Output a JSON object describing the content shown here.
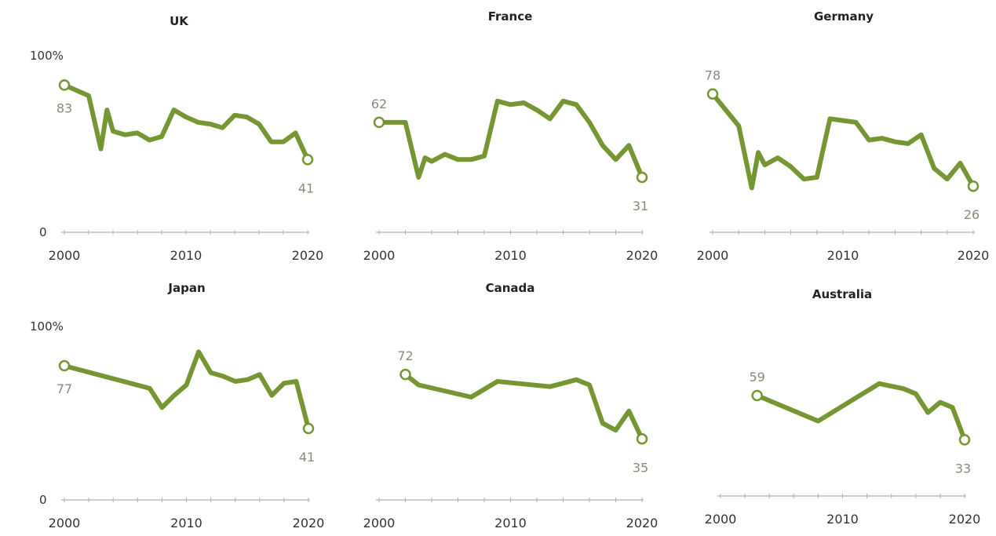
{
  "colors": {
    "line": "#759632",
    "axis": "#b0b0b0",
    "value_label": "#8a8a7a"
  },
  "chart_data": [
    {
      "type": "line",
      "title": "UK",
      "xlim": [
        2000,
        2020
      ],
      "ylim": [
        0,
        100
      ],
      "y_tick_labels": [
        "100%",
        "0"
      ],
      "x_tick_labels": [
        "2000",
        "2010",
        "2020"
      ],
      "x": [
        2000,
        2002,
        2003,
        2003.5,
        2004,
        2005,
        2006,
        2007,
        2008,
        2009,
        2010,
        2011,
        2012,
        2013,
        2014,
        2015,
        2016,
        2017,
        2018,
        2019,
        2020
      ],
      "values": [
        83,
        77,
        47,
        69,
        57,
        55,
        56,
        52,
        54,
        69,
        65,
        62,
        61,
        59,
        66,
        65,
        61,
        51,
        51,
        56,
        41
      ],
      "start_label": "83",
      "end_label": "41"
    },
    {
      "type": "line",
      "title": "France",
      "xlim": [
        2000,
        2020
      ],
      "ylim": [
        0,
        100
      ],
      "y_tick_labels": [],
      "x_tick_labels": [
        "2000",
        "2010",
        "2020"
      ],
      "x": [
        2000,
        2002,
        2003,
        2003.5,
        2004,
        2005,
        2006,
        2007,
        2008,
        2009,
        2010,
        2011,
        2012,
        2013,
        2014,
        2015,
        2016,
        2017,
        2018,
        2019,
        2020
      ],
      "values": [
        62,
        62,
        31,
        42,
        40,
        44,
        41,
        41,
        43,
        74,
        72,
        73,
        69,
        64,
        74,
        72,
        62,
        49,
        41,
        49,
        31
      ],
      "start_label": "62",
      "end_label": "31"
    },
    {
      "type": "line",
      "title": "Germany",
      "xlim": [
        2000,
        2020
      ],
      "ylim": [
        0,
        100
      ],
      "y_tick_labels": [],
      "x_tick_labels": [
        "2000",
        "2010",
        "2020"
      ],
      "x": [
        2000,
        2002,
        2003,
        2003.5,
        2004,
        2005,
        2006,
        2007,
        2008,
        2009,
        2010,
        2011,
        2012,
        2013,
        2014,
        2015,
        2016,
        2017,
        2018,
        2019,
        2020
      ],
      "values": [
        78,
        60,
        25,
        45,
        38,
        42,
        37,
        30,
        31,
        64,
        63,
        62,
        52,
        53,
        51,
        50,
        55,
        36,
        30,
        39,
        26
      ],
      "start_label": "78",
      "end_label": "26"
    },
    {
      "type": "line",
      "title": "Japan",
      "xlim": [
        2000,
        2020
      ],
      "ylim": [
        0,
        100
      ],
      "y_tick_labels": [
        "100%",
        "0"
      ],
      "x_tick_labels": [
        "2000",
        "2010",
        "2020"
      ],
      "x": [
        2000,
        2007,
        2008,
        2009,
        2010,
        2011,
        2012,
        2013,
        2014,
        2015,
        2016,
        2017,
        2018,
        2019,
        2020
      ],
      "values": [
        77,
        64,
        53,
        60,
        66,
        85,
        73,
        71,
        68,
        69,
        72,
        60,
        67,
        68,
        41
      ],
      "start_label": "77",
      "end_label": "41"
    },
    {
      "type": "line",
      "title": "Canada",
      "xlim": [
        2000,
        2020
      ],
      "ylim": [
        0,
        100
      ],
      "y_tick_labels": [],
      "x_tick_labels": [
        "2000",
        "2010",
        "2020"
      ],
      "x": [
        2002,
        2003,
        2007,
        2009,
        2013,
        2014,
        2015,
        2016,
        2017,
        2018,
        2019,
        2020
      ],
      "values": [
        72,
        66,
        59,
        68,
        65,
        67,
        69,
        66,
        44,
        40,
        51,
        35
      ],
      "start_label": "72",
      "end_label": "35"
    },
    {
      "type": "line",
      "title": "Australia",
      "xlim": [
        2000,
        2020
      ],
      "ylim": [
        0,
        100
      ],
      "y_tick_labels": [],
      "x_tick_labels": [
        "2000",
        "2010",
        "2020"
      ],
      "x": [
        2003,
        2008,
        2013,
        2015,
        2016,
        2017,
        2018,
        2019,
        2020
      ],
      "values": [
        59,
        44,
        66,
        63,
        60,
        49,
        55,
        52,
        33
      ],
      "start_label": "59",
      "end_label": "33"
    }
  ]
}
